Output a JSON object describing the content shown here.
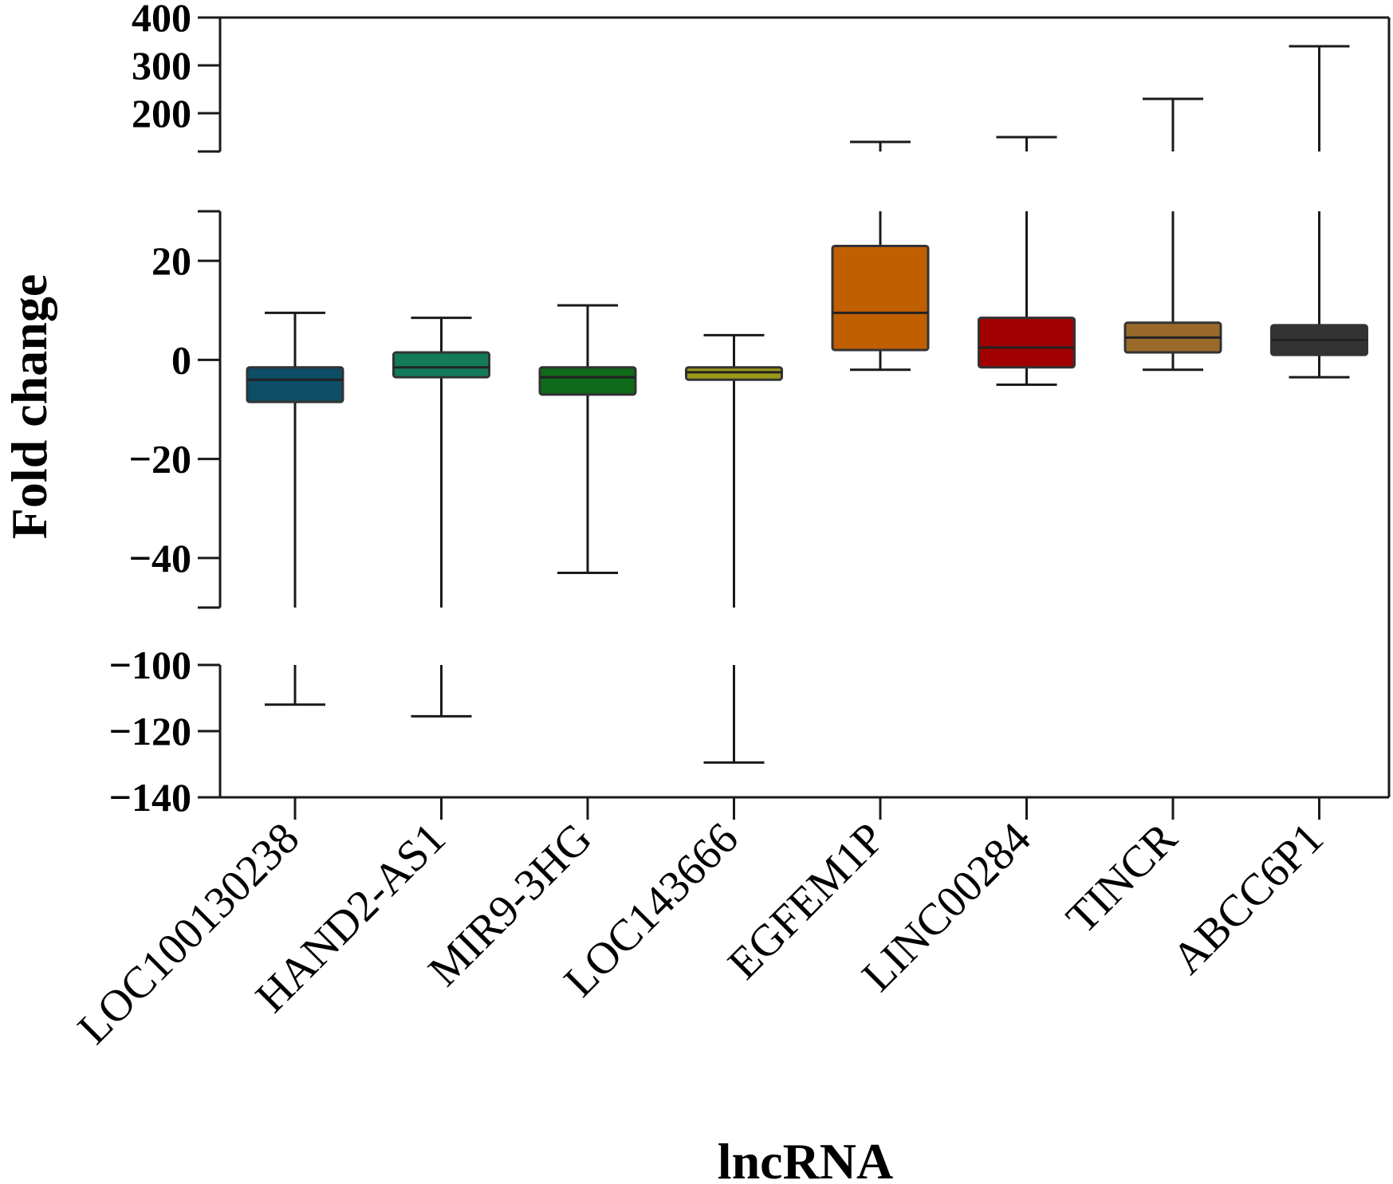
{
  "chart_data": {
    "type": "box",
    "title": "",
    "xlabel": "lncRNA",
    "ylabel": "Fold change",
    "y_axis_breaks": [
      {
        "segment": "top",
        "ylim": [
          120,
          400
        ],
        "ticks": [
          200,
          300,
          400
        ],
        "tick_labels": [
          "200",
          "300",
          "400"
        ]
      },
      {
        "segment": "middle",
        "ylim": [
          -50,
          30
        ],
        "ticks": [
          -40,
          -20,
          0,
          20
        ],
        "tick_labels": [
          "−40",
          "−20",
          "0",
          "20"
        ]
      },
      {
        "segment": "bottom",
        "ylim": [
          -140,
          -100
        ],
        "ticks": [
          -140,
          -120,
          -100
        ],
        "tick_labels": [
          "−140",
          "−120",
          "−100"
        ]
      }
    ],
    "grid": false,
    "categories": [
      "LOC100130238",
      "HAND2-AS1",
      "MIR9-3HG",
      "LOC143666",
      "EGFEM1P",
      "LINC00284",
      "TINCR",
      "ABCC6P1"
    ],
    "boxes": [
      {
        "name": "LOC100130238",
        "min": -112,
        "q1": -8.5,
        "median": -4,
        "q3": -1.5,
        "max": 9.5,
        "color": "#0e4d66"
      },
      {
        "name": "HAND2-AS1",
        "min": -115.5,
        "q1": -3.5,
        "median": -1.5,
        "q3": 1.5,
        "max": 8.5,
        "color": "#137a5a"
      },
      {
        "name": "MIR9-3HG",
        "min": -43,
        "q1": -7,
        "median": -3.5,
        "q3": -1.5,
        "max": 11,
        "color": "#0f6a1a"
      },
      {
        "name": "LOC143666",
        "min": -129.5,
        "q1": -4,
        "median": -2.5,
        "q3": -1.5,
        "max": 5,
        "color": "#9a9a1a"
      },
      {
        "name": "EGFEM1P",
        "min": -2,
        "q1": 2,
        "median": 9.5,
        "q3": 23,
        "max": 140,
        "color": "#c05f00"
      },
      {
        "name": "LINC00284",
        "min": -5,
        "q1": -1.5,
        "median": 2.5,
        "q3": 8.5,
        "max": 150,
        "color": "#a00000"
      },
      {
        "name": "TINCR",
        "min": -2,
        "q1": 1.5,
        "median": 4.5,
        "q3": 7.5,
        "max": 230,
        "color": "#9a6a2a"
      },
      {
        "name": "ABCC6P1",
        "min": -3.5,
        "q1": 1,
        "median": 4,
        "q3": 7,
        "max": 340,
        "color": "#333333"
      }
    ]
  }
}
